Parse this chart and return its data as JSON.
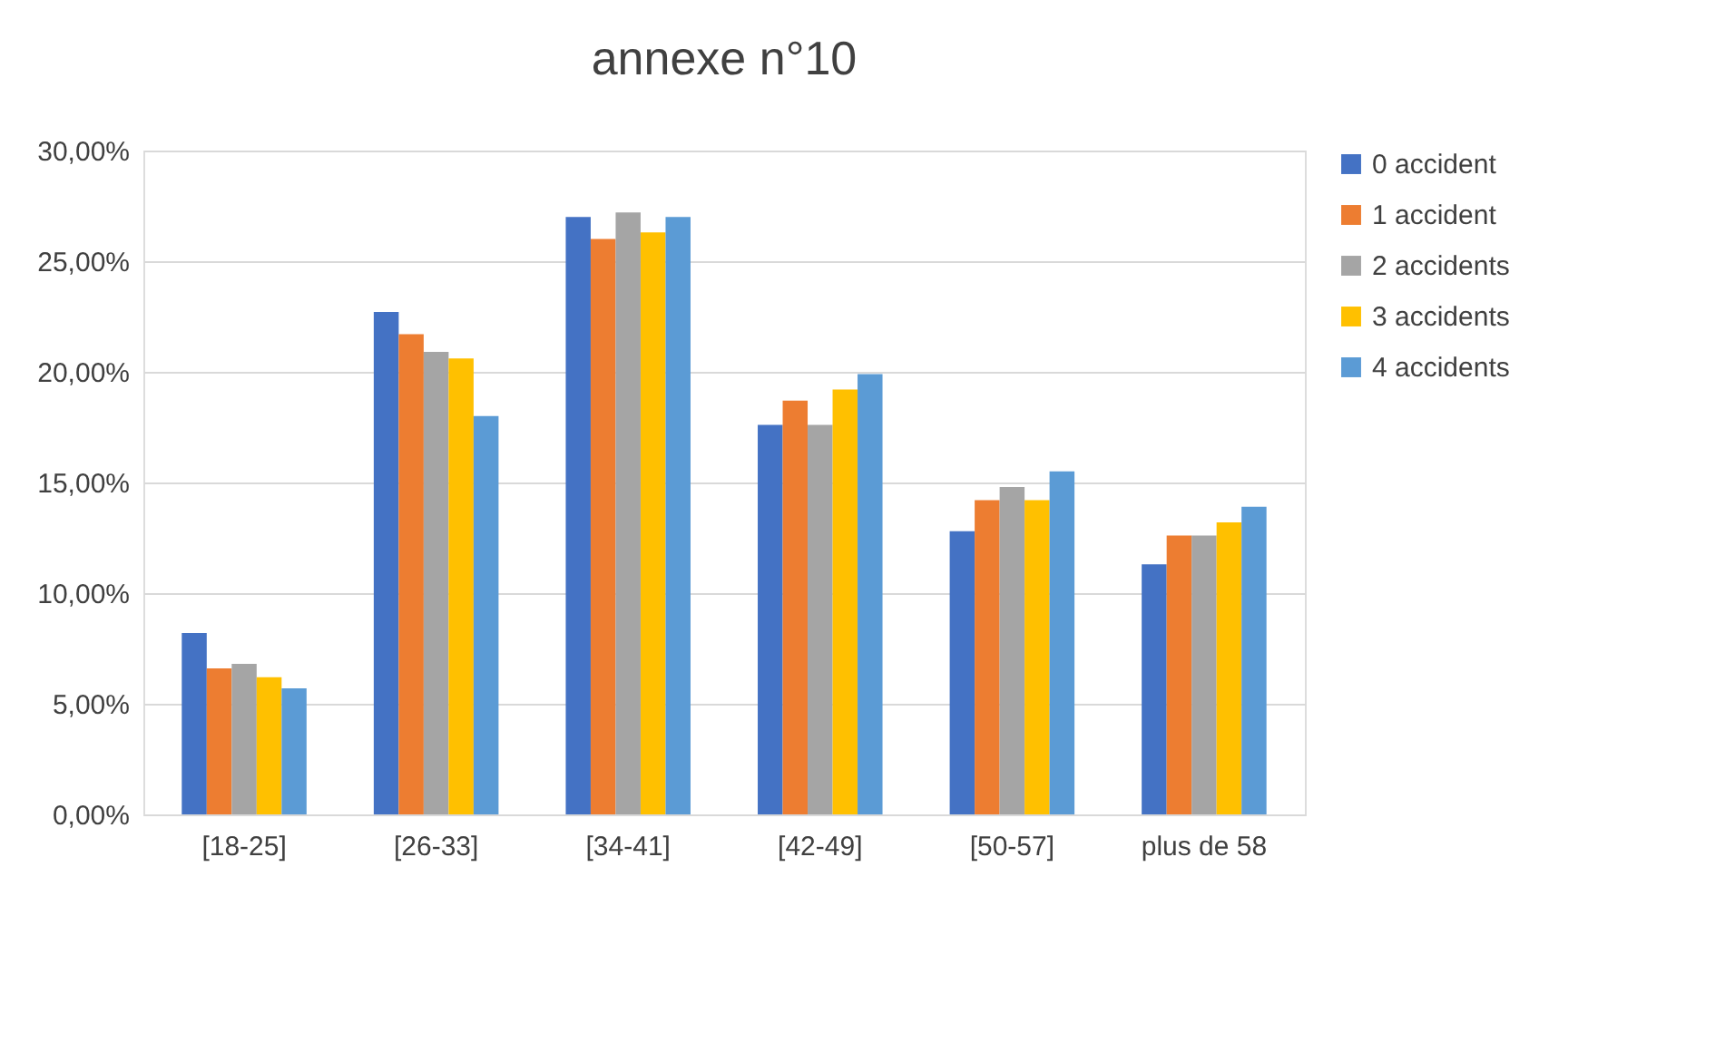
{
  "chart_data": {
    "type": "bar",
    "title": "annexe n°10",
    "categories": [
      "[18-25]",
      "[26-33]",
      "[34-41]",
      "[42-49]",
      "[50-57]",
      "plus de 58"
    ],
    "series": [
      {
        "name": "0 accident",
        "color": "#4472c4",
        "values": [
          8.2,
          22.7,
          27.0,
          17.6,
          12.8,
          11.3
        ]
      },
      {
        "name": "1 accident",
        "color": "#ed7d31",
        "values": [
          6.6,
          21.7,
          26.0,
          18.7,
          14.2,
          12.6
        ]
      },
      {
        "name": "2 accidents",
        "color": "#a5a5a5",
        "values": [
          6.8,
          20.9,
          27.2,
          17.6,
          14.8,
          12.6
        ]
      },
      {
        "name": "3 accidents",
        "color": "#ffc000",
        "values": [
          6.2,
          20.6,
          26.3,
          19.2,
          14.2,
          13.2
        ]
      },
      {
        "name": "4 accidents",
        "color": "#5b9bd5",
        "values": [
          5.7,
          18.0,
          27.0,
          19.9,
          15.5,
          13.9
        ]
      }
    ],
    "ylim": [
      0,
      30
    ],
    "yticks": [
      {
        "value": 0,
        "label": "0,00%"
      },
      {
        "value": 5,
        "label": "5,00%"
      },
      {
        "value": 10,
        "label": "10,00%"
      },
      {
        "value": 15,
        "label": "15,00%"
      },
      {
        "value": 20,
        "label": "20,00%"
      },
      {
        "value": 25,
        "label": "25,00%"
      },
      {
        "value": 30,
        "label": "30,00%"
      }
    ],
    "grid": "y",
    "legend": "right"
  }
}
